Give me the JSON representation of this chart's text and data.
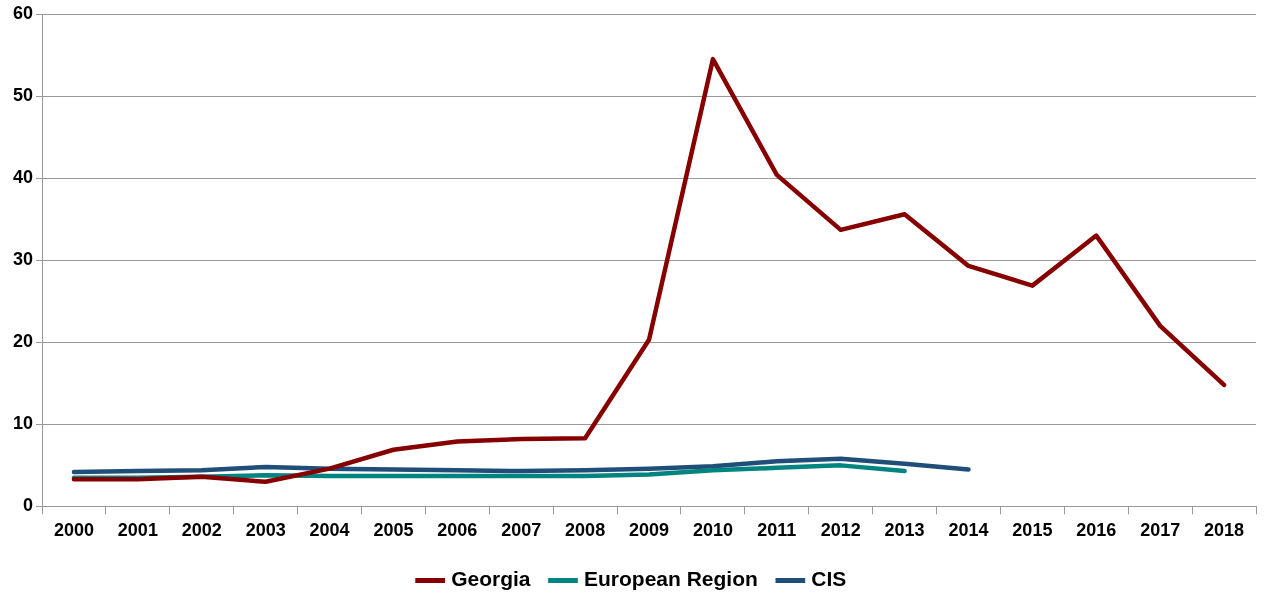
{
  "chart_data": {
    "type": "line",
    "categories": [
      "2000",
      "2001",
      "2002",
      "2003",
      "2004",
      "2005",
      "2006",
      "2007",
      "2008",
      "2009",
      "2010",
      "2011",
      "2012",
      "2013",
      "2014",
      "2015",
      "2016",
      "2017",
      "2018"
    ],
    "series": [
      {
        "name": "Georgia",
        "color": "#870000",
        "values": [
          3.3,
          3.3,
          3.6,
          3.0,
          4.6,
          6.9,
          7.9,
          8.2,
          8.3,
          20.3,
          54.5,
          40.4,
          33.7,
          35.6,
          29.3,
          26.9,
          33.0,
          22.0,
          14.8
        ]
      },
      {
        "name": "European Region",
        "color": "#00847f",
        "values": [
          3.5,
          3.5,
          3.6,
          3.8,
          3.7,
          3.7,
          3.7,
          3.7,
          3.7,
          3.9,
          4.4,
          4.7,
          5.0,
          4.3,
          null,
          null,
          null,
          null,
          null
        ]
      },
      {
        "name": "CIS",
        "color": "#1f4e79",
        "values": [
          4.2,
          4.3,
          4.4,
          4.8,
          4.6,
          4.5,
          4.4,
          4.3,
          4.4,
          4.6,
          4.9,
          5.5,
          5.8,
          5.2,
          4.5,
          null,
          null,
          null,
          null
        ]
      }
    ],
    "ylim": [
      0,
      60
    ],
    "yticks": [
      0,
      10,
      20,
      30,
      40,
      50,
      60
    ],
    "grid": "y",
    "legend": "bottom",
    "marker": "none",
    "line_style": "solid"
  }
}
